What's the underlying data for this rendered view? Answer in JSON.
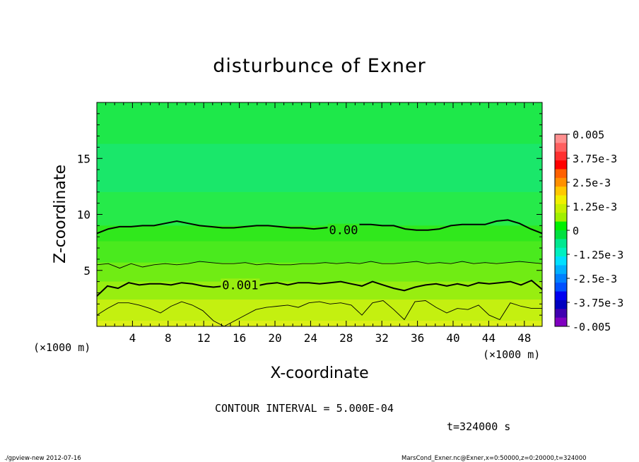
{
  "chart_data": {
    "type": "heatmap",
    "title": "disturbunce of Exner",
    "xlabel": "X-coordinate",
    "ylabel": "Z-coordinate",
    "x_unit_left": "(×1000 m)",
    "x_unit_right": "(×1000 m)",
    "xlim": [
      0,
      50
    ],
    "ylim": [
      0,
      20
    ],
    "x_ticks": [
      4,
      8,
      12,
      16,
      20,
      24,
      28,
      32,
      36,
      40,
      44,
      48
    ],
    "y_ticks": [
      5,
      10,
      15
    ],
    "x_tick_labels": [
      "4",
      "8",
      "12",
      "16",
      "20",
      "24",
      "28",
      "32",
      "36",
      "40",
      "44",
      "48"
    ],
    "y_tick_labels": [
      "5",
      "10",
      "15"
    ],
    "colorbar": {
      "labels": [
        "0.005",
        "3.75e-3",
        "2.5e-3",
        "1.25e-3",
        "0",
        "-1.25e-3",
        "-2.5e-3",
        "-3.75e-3",
        "-0.005"
      ],
      "label_values": [
        0.005,
        0.00375,
        0.0025,
        0.00125,
        0,
        -0.00125,
        -0.0025,
        -0.00375,
        -0.005
      ],
      "colors": [
        "#ff9090",
        "#ff6060",
        "#ff3030",
        "#ff0000",
        "#ff6000",
        "#ff9000",
        "#ffc800",
        "#f0f000",
        "#c8f000",
        "#a0f000",
        "#00f000",
        "#00e040",
        "#00e890",
        "#00f0c0",
        "#00e0ff",
        "#00b0ff",
        "#0080ff",
        "#0050ff",
        "#0000f0",
        "#0000c0",
        "#4000b0",
        "#8000c0"
      ]
    },
    "contour_labels": [
      {
        "text": "0.00",
        "value": 0,
        "x": 27.7,
        "z": 8.6
      },
      {
        "text": "0.001",
        "value": 0.001,
        "x": 16.1,
        "z": 3.7
      }
    ],
    "bands": [
      {
        "z_top": 20.0,
        "value": -0.0003,
        "color": "#1ee84a"
      },
      {
        "z_top": 16.3,
        "value": -0.0005,
        "color": "#1ae76a"
      },
      {
        "z_top": 12.0,
        "value": -0.0002,
        "color": "#26ea4a"
      },
      {
        "z_top": 9.0,
        "value": 0.0002,
        "color": "#30e81c"
      },
      {
        "z_top": 7.6,
        "value": 0.0004,
        "color": "#4aea1e"
      },
      {
        "z_top": 5.7,
        "value": 0.0007,
        "color": "#70ec14"
      },
      {
        "z_top": 4.0,
        "value": 0.0011,
        "color": "#98ee10"
      },
      {
        "z_top": 2.4,
        "value": 0.0015,
        "color": "#c4f010"
      },
      {
        "z_top": 0.5,
        "value": 0.0018,
        "color": "#dcf018"
      }
    ],
    "contours": [
      {
        "value": 0,
        "weight": "major",
        "z": [
          8.3,
          8.7,
          8.9,
          8.9,
          9.0,
          9.0,
          9.2,
          9.4,
          9.2,
          9.0,
          8.9,
          8.8,
          8.8,
          8.9,
          9.0,
          9.0,
          8.9,
          8.8,
          8.8,
          8.7,
          8.8,
          8.9,
          8.9,
          9.1,
          9.1,
          9.0,
          9.0,
          8.7,
          8.6,
          8.6,
          8.7,
          9.0,
          9.1,
          9.1,
          9.1,
          9.4,
          9.5,
          9.2,
          8.7,
          8.3
        ]
      },
      {
        "value": 0.0005,
        "weight": "minor",
        "z": [
          5.5,
          5.6,
          5.2,
          5.6,
          5.3,
          5.5,
          5.6,
          5.5,
          5.6,
          5.8,
          5.7,
          5.6,
          5.6,
          5.7,
          5.5,
          5.6,
          5.5,
          5.5,
          5.6,
          5.6,
          5.7,
          5.6,
          5.7,
          5.6,
          5.8,
          5.6,
          5.6,
          5.7,
          5.8,
          5.6,
          5.7,
          5.6,
          5.8,
          5.6,
          5.7,
          5.6,
          5.7,
          5.8,
          5.7,
          5.6
        ]
      },
      {
        "value": 0.001,
        "weight": "major",
        "z": [
          2.7,
          3.6,
          3.4,
          3.9,
          3.7,
          3.8,
          3.8,
          3.7,
          3.9,
          3.8,
          3.6,
          3.5,
          3.6,
          3.5,
          3.5,
          3.6,
          3.8,
          3.9,
          3.7,
          3.9,
          3.9,
          3.8,
          3.9,
          4.0,
          3.8,
          3.6,
          4.0,
          3.7,
          3.4,
          3.2,
          3.5,
          3.7,
          3.8,
          3.6,
          3.8,
          3.6,
          3.9,
          3.8,
          3.9,
          4.0,
          3.7,
          4.1,
          3.3
        ]
      },
      {
        "value": 0.0015,
        "weight": "minor",
        "z": [
          1.0,
          1.6,
          2.1,
          2.1,
          1.9,
          1.6,
          1.2,
          1.8,
          2.2,
          1.9,
          1.4,
          0.5,
          0.0,
          0.5,
          1.0,
          1.5,
          1.7,
          1.8,
          1.9,
          1.7,
          2.1,
          2.2,
          2.0,
          2.1,
          1.9,
          1.0,
          2.1,
          2.3,
          1.5,
          0.6,
          2.2,
          2.3,
          1.7,
          1.2,
          1.6,
          1.5,
          1.9,
          1.0,
          0.6,
          2.1,
          1.8,
          1.6,
          1.6
        ]
      }
    ]
  },
  "footer": {
    "contour_interval": "CONTOUR INTERVAL = 5.000E-04",
    "time": "t=324000 s",
    "program": "./gpview-new   2012-07-16",
    "source": "MarsCond_Exner.nc@Exner,x=0:50000,z=0:20000,t=324000"
  }
}
